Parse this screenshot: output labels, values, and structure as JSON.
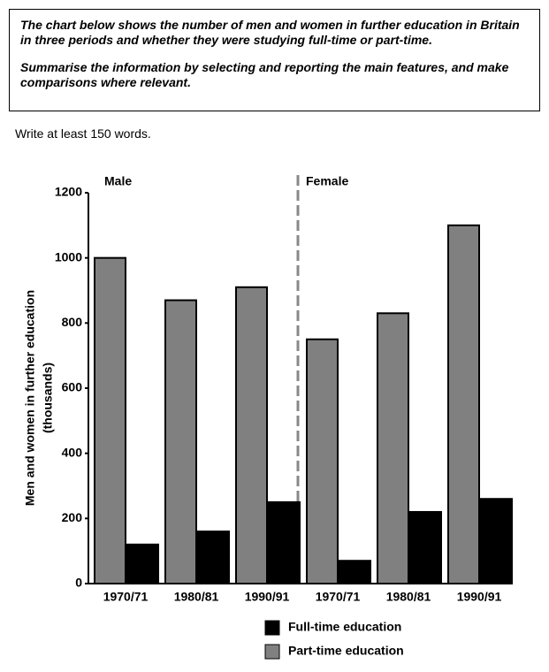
{
  "prompt": {
    "paragraphs": [
      "The chart below shows the number of men and women in further education in Britain in three periods and whether they were studying full-time or part-time.",
      "Summarise the information by selecting and reporting the main features, and make comparisons where relevant."
    ]
  },
  "instruction": "Write at least 150 words.",
  "chart_data": {
    "type": "bar",
    "groups": [
      "Male",
      "Female"
    ],
    "categories": [
      "1970/71",
      "1980/81",
      "1990/91",
      "1970/71",
      "1980/81",
      "1990/91"
    ],
    "y_label": "Men and women in further education",
    "y_label_unit": "(thousands)",
    "series": [
      {
        "name": "Full-time education",
        "color": "#000000",
        "values": [
          120,
          160,
          250,
          70,
          220,
          260
        ]
      },
      {
        "name": "Part-time education",
        "color": "#808080",
        "values": [
          1000,
          870,
          910,
          750,
          830,
          1100
        ]
      }
    ],
    "ylim": [
      0,
      1200
    ],
    "yticks": [
      0,
      200,
      400,
      600,
      800,
      1000,
      1200
    ]
  }
}
